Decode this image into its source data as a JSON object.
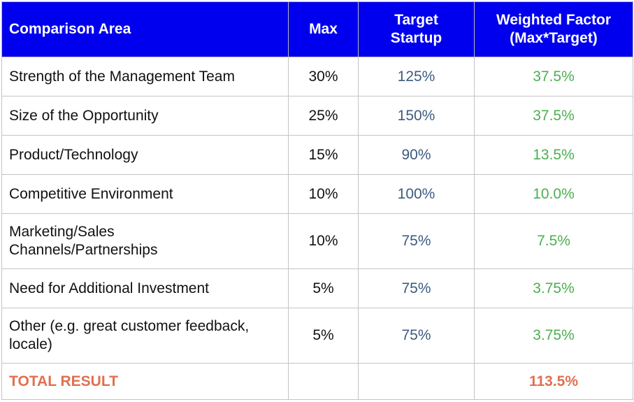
{
  "headers": {
    "area": "Comparison Area",
    "max": "Max",
    "target_line1": "Target",
    "target_line2": "Startup",
    "weighted_line1": "Weighted Factor",
    "weighted_line2": "(Max*Target)"
  },
  "rows": [
    {
      "area": "Strength of the Management Team",
      "max": "30%",
      "target": "125%",
      "weighted": "37.5%"
    },
    {
      "area": "Size of the Opportunity",
      "max": "25%",
      "target": "150%",
      "weighted": "37.5%"
    },
    {
      "area": "Product/Technology",
      "max": "15%",
      "target": "90%",
      "weighted": "13.5%"
    },
    {
      "area": "Competitive Environment",
      "max": "10%",
      "target": "100%",
      "weighted": "10.0%"
    },
    {
      "area_line1": "Marketing/Sales",
      "area_line2": "Channels/Partnerships",
      "max": "10%",
      "target": "75%",
      "weighted": "7.5%"
    },
    {
      "area": "Need for Additional Investment",
      "max": "5%",
      "target": "75%",
      "weighted": "3.75%"
    },
    {
      "area_line1": "Other (e.g. great customer feedback,",
      "area_line2": "locale)",
      "max": "5%",
      "target": "75%",
      "weighted": "3.75%"
    }
  ],
  "total": {
    "label": "TOTAL RESULT",
    "value": "113.5%"
  },
  "colors": {
    "header_bg": "#0000ee",
    "target_text": "#3d5a80",
    "weighted_text": "#4caf50",
    "total_text": "#e07050"
  }
}
